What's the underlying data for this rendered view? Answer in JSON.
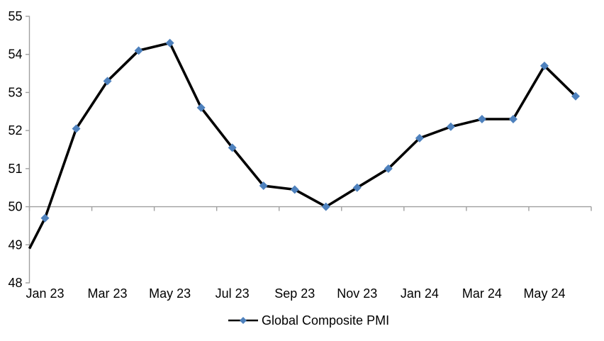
{
  "chart_data": {
    "type": "line",
    "title": "",
    "x": [
      "Jan 23",
      "Feb 23",
      "Mar 23",
      "Apr 23",
      "May 23",
      "Jun 23",
      "Jul 23",
      "Aug 23",
      "Sep 23",
      "Oct 23",
      "Nov 23",
      "Dec 23",
      "Jan 24",
      "Feb 24",
      "Mar 24",
      "Apr 24",
      "May 24",
      "Jun 24"
    ],
    "series": [
      {
        "name": "Global Composite PMI",
        "values": [
          49.7,
          52.05,
          53.3,
          54.1,
          54.3,
          52.6,
          51.55,
          50.55,
          50.45,
          50.0,
          50.5,
          51.0,
          51.8,
          52.1,
          52.3,
          52.3,
          53.7,
          52.9
        ],
        "line_color": "#000000",
        "line_width": 3.6,
        "marker_shape": "diamond",
        "marker_color": "#4E81BD",
        "enters_from_left_axis_at": 48.9
      }
    ],
    "ylim": [
      48,
      55
    ],
    "yticks": [
      48,
      49,
      50,
      51,
      52,
      53,
      54,
      55
    ],
    "xtick_labels": [
      "Jan 23",
      "Mar 23",
      "May 23",
      "Jul 23",
      "Sep 23",
      "Nov 23",
      "Jan 24",
      "Mar 24",
      "May 24"
    ],
    "x_axis_position_value": 50,
    "x_tick_every_n_categories": 2,
    "axis_color": "#A0A0A0",
    "text_color": "#000000",
    "background_color": "#FFFFFF",
    "grid": "off",
    "legend": {
      "label": "Global Composite PMI",
      "position": "bottom-center",
      "sample": "line-with-diamond-marker"
    }
  }
}
